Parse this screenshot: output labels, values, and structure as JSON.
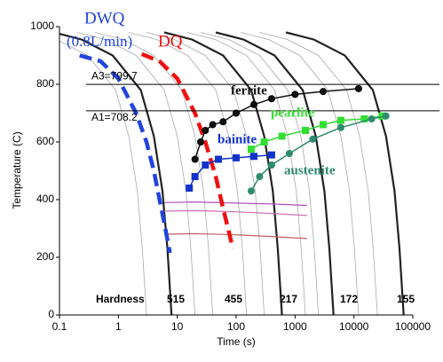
{
  "chart_data": {
    "type": "line",
    "xscale": "log",
    "xlabel": "Time (s)",
    "ylabel": "Temperature (C)",
    "xlim": [
      0.1,
      100000
    ],
    "ylim": [
      0,
      1000
    ],
    "xticks": [
      0.1,
      1,
      10,
      100,
      1000,
      10000,
      100000
    ],
    "yticks": [
      0,
      200,
      400,
      600,
      800,
      1000
    ],
    "reference_lines": [
      {
        "label": "A3=799.7",
        "value": 799.7
      },
      {
        "label": "A1=708.2",
        "value": 708.2
      }
    ],
    "hardness": {
      "label": "Hardness",
      "values": [
        515,
        455,
        217,
        172,
        155
      ]
    },
    "annotations": [
      "(0.8L/min)"
    ],
    "series": [
      {
        "color": "#aaaaaa",
        "style": "thin",
        "x": [
          0.03,
          0.09,
          0.3,
          0.9,
          1.5,
          2.1,
          2.55,
          3
        ],
        "y": [
          980,
          955,
          900,
          780,
          620,
          430,
          230,
          0
        ]
      },
      {
        "color": "#aaaaaa",
        "style": "thin",
        "x": [
          0.2,
          0.6,
          2,
          6,
          10,
          14,
          17,
          20
        ],
        "y": [
          980,
          955,
          900,
          780,
          620,
          430,
          230,
          0
        ]
      },
      {
        "color": "#aaaaaa",
        "style": "thin",
        "x": [
          0.4,
          1.2,
          4,
          12,
          20,
          28,
          34,
          40
        ],
        "y": [
          980,
          955,
          900,
          780,
          620,
          430,
          230,
          0
        ]
      },
      {
        "color": "#aaaaaa",
        "style": "thin",
        "x": [
          1.5,
          4.5,
          15,
          45,
          75,
          105,
          127.5,
          150
        ],
        "y": [
          980,
          955,
          900,
          780,
          620,
          430,
          230,
          0
        ]
      },
      {
        "color": "#aaaaaa",
        "style": "thin",
        "x": [
          3,
          9,
          30,
          90,
          150,
          210,
          255,
          300
        ],
        "y": [
          980,
          955,
          900,
          780,
          620,
          430,
          230,
          0
        ]
      },
      {
        "color": "#aaaaaa",
        "style": "thin",
        "x": [
          15,
          45,
          150,
          450,
          750,
          1050,
          1275,
          1500
        ],
        "y": [
          980,
          955,
          900,
          780,
          620,
          430,
          230,
          0
        ]
      },
      {
        "color": "#aaaaaa",
        "style": "thin",
        "x": [
          25,
          75,
          250,
          750,
          1250,
          1750,
          2125,
          2500
        ],
        "y": [
          980,
          955,
          900,
          780,
          620,
          430,
          230,
          0
        ]
      },
      {
        "color": "#aaaaaa",
        "style": "thin",
        "x": [
          120,
          360,
          1200,
          3600,
          6000,
          8400,
          10200,
          12000
        ],
        "y": [
          980,
          955,
          900,
          780,
          620,
          430,
          230,
          0
        ]
      },
      {
        "color": "#aaaaaa",
        "style": "thin",
        "x": [
          250,
          750,
          2500,
          7500,
          12500,
          17500,
          21250,
          25000
        ],
        "y": [
          980,
          955,
          900,
          780,
          620,
          430,
          230,
          0
        ]
      },
      {
        "color": "#222222",
        "style": "thick",
        "x": [
          0.08,
          0.24,
          0.8,
          2.4,
          4,
          5.6,
          6.8,
          8
        ],
        "y": [
          980,
          955,
          900,
          780,
          620,
          430,
          230,
          0
        ]
      },
      {
        "color": "#222222",
        "style": "thick",
        "x": [
          6,
          18,
          60,
          180,
          300,
          420,
          510,
          600
        ],
        "y": [
          980,
          955,
          900,
          780,
          620,
          430,
          230,
          0
        ]
      },
      {
        "color": "#222222",
        "style": "thick",
        "x": [
          45,
          135,
          450,
          1350,
          2250,
          3150,
          3825,
          4500
        ],
        "y": [
          980,
          955,
          900,
          780,
          620,
          430,
          230,
          0
        ]
      },
      {
        "color": "#222222",
        "style": "thick",
        "x": [
          700,
          2100,
          7000,
          21000,
          35000,
          49000,
          59500,
          70000
        ],
        "y": [
          980,
          955,
          900,
          780,
          620,
          430,
          230,
          0
        ]
      },
      {
        "color": "#b050c0",
        "style": "medium",
        "x": [
          6,
          20,
          100,
          400,
          1600
        ],
        "y": [
          390,
          392,
          388,
          385,
          380
        ]
      },
      {
        "color": "#d070b0",
        "style": "medium",
        "x": [
          6,
          20,
          100,
          400,
          1600
        ],
        "y": [
          360,
          362,
          358,
          352,
          345
        ]
      },
      {
        "color": "#c06060",
        "style": "medium",
        "x": [
          6,
          20,
          100,
          400,
          1600
        ],
        "y": [
          280,
          282,
          278,
          272,
          265
        ]
      },
      {
        "name": "DWQ",
        "color": "#2244dd",
        "style": "dashed",
        "x": [
          0.22,
          0.5,
          1,
          2,
          3,
          4,
          5,
          6,
          7.5
        ],
        "y": [
          900,
          880,
          820,
          700,
          600,
          500,
          400,
          320,
          215
        ]
      },
      {
        "name": "DQ",
        "color": "#ee1111",
        "style": "dashed",
        "x": [
          2.5,
          5,
          10,
          20,
          30,
          45,
          60,
          75,
          88
        ],
        "y": [
          905,
          880,
          820,
          700,
          600,
          480,
          370,
          290,
          230
        ]
      },
      {
        "name": "ferrite",
        "color": "#111111",
        "style": "markers",
        "marker": "circle",
        "x": [
          20,
          25,
          30,
          40,
          60,
          100,
          200,
          400,
          1000,
          3000,
          12000
        ],
        "y": [
          540,
          600,
          640,
          660,
          670,
          700,
          730,
          750,
          765,
          775,
          785
        ]
      },
      {
        "name": "pearlite",
        "color": "#33dd33",
        "style": "markers",
        "marker": "square",
        "x": [
          180,
          300,
          600,
          1500,
          3000,
          6000,
          15000,
          30000
        ],
        "y": [
          575,
          600,
          620,
          640,
          660,
          675,
          680,
          690
        ]
      },
      {
        "name": "bainite",
        "color": "#1133cc",
        "style": "markers",
        "marker": "square",
        "x": [
          16,
          20,
          30,
          50,
          100,
          200,
          400
        ],
        "y": [
          440,
          480,
          520,
          540,
          545,
          550,
          555
        ]
      },
      {
        "name": "austenite",
        "color": "#2e8b6e",
        "style": "markers",
        "marker": "circle",
        "x": [
          180,
          250,
          400,
          800,
          2000,
          6000,
          20000,
          35000
        ],
        "y": [
          430,
          480,
          520,
          560,
          610,
          650,
          680,
          690
        ]
      }
    ]
  }
}
